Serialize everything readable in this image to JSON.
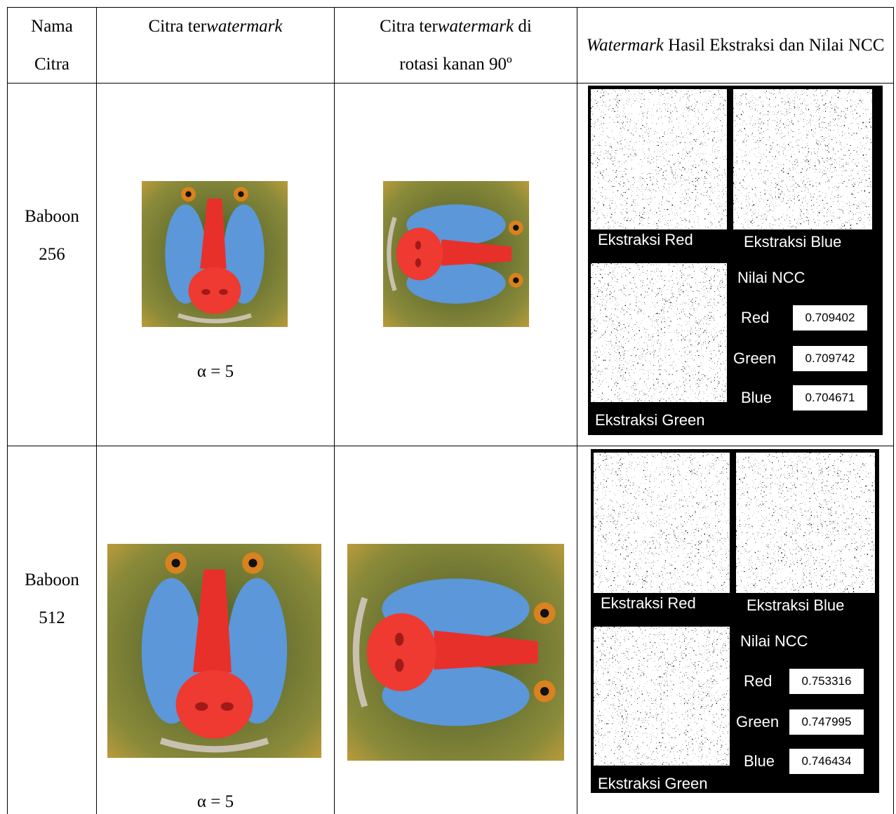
{
  "table": {
    "header": [
      [
        "Nama Citra"
      ],
      [
        "Citra ter",
        "watermark"
      ],
      [
        "Citra ter",
        "watermark",
        " di rotasi kanan 90º"
      ],
      [
        "Watermark",
        " Hasil Ekstraksi dan Nilai NCC"
      ]
    ],
    "rows": [
      {
        "name": "Baboon 256",
        "alpha": "α = 5",
        "panel": {
          "labels": [
            "Ekstraksi Red",
            "Ekstraksi Blue",
            "Ekstraksi Green"
          ],
          "ncc_title": "Nilai NCC",
          "ncc": [
            {
              "channel": "Red",
              "value": "0.709402"
            },
            {
              "channel": "Green",
              "value": "0.709742"
            },
            {
              "channel": "Blue",
              "value": "0.704671"
            }
          ]
        }
      },
      {
        "name": "Baboon 512",
        "alpha": "α = 5",
        "panel": {
          "labels": [
            "Ekstraksi Red",
            "Ekstraksi Blue",
            "Ekstraksi Green"
          ],
          "ncc_title": "Nilai NCC",
          "ncc": [
            {
              "channel": "Red",
              "value": "0.753316"
            },
            {
              "channel": "Green",
              "value": "0.747995"
            },
            {
              "channel": "Blue",
              "value": "0.746434"
            }
          ]
        }
      }
    ]
  }
}
